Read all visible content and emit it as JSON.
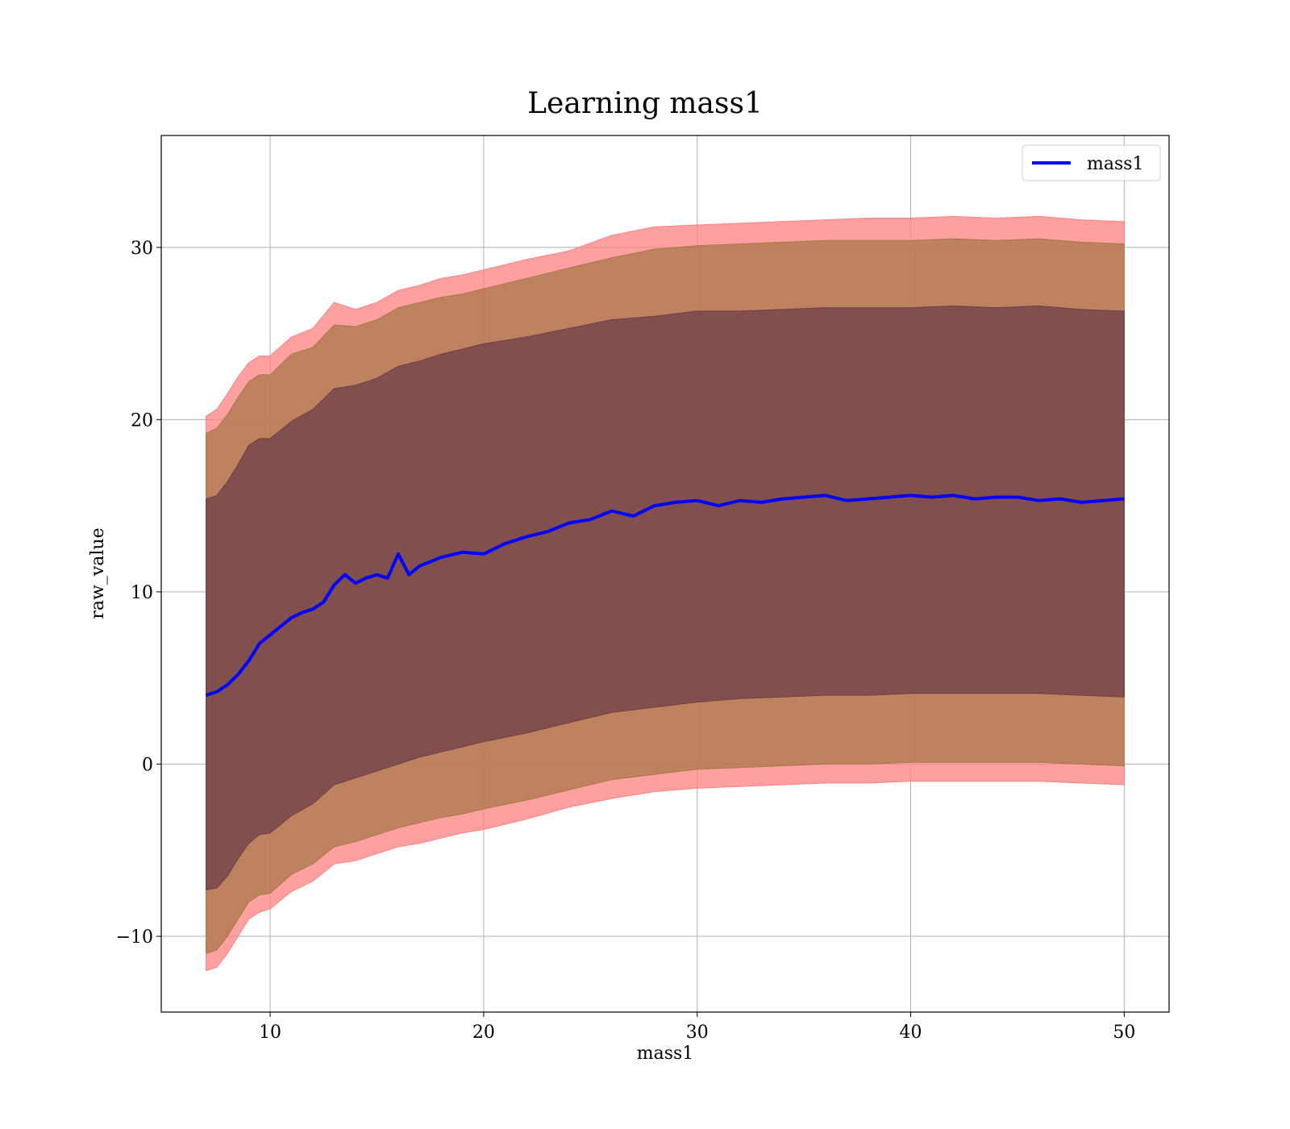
{
  "chart_data": {
    "type": "line",
    "title": "Learning mass1",
    "xlabel": "mass1",
    "ylabel": "raw_value",
    "xlim": [
      4.9,
      52.1
    ],
    "ylim": [
      -14.4,
      36.5
    ],
    "x_ticks": [
      10,
      20,
      30,
      40,
      50
    ],
    "y_ticks": [
      -10,
      0,
      10,
      20,
      30
    ],
    "grid": true,
    "legend_position": "top-right",
    "series": [
      {
        "name": "mass1",
        "color": "#0000ff",
        "x": [
          7,
          7.5,
          8,
          8.5,
          9,
          9.5,
          10,
          10.5,
          11,
          11.5,
          12,
          12.5,
          13,
          13.5,
          14,
          14.5,
          15,
          15.5,
          16,
          16.5,
          17,
          18,
          19,
          20,
          21,
          22,
          23,
          24,
          25,
          26,
          27,
          28,
          29,
          30,
          31,
          32,
          33,
          34,
          35,
          36,
          37,
          38,
          39,
          40,
          41,
          42,
          43,
          44,
          45,
          46,
          47,
          48,
          49,
          50
        ],
        "values": [
          4.0,
          4.2,
          4.6,
          5.2,
          6.0,
          7.0,
          7.5,
          8.0,
          8.5,
          8.8,
          9.0,
          9.4,
          10.4,
          11.0,
          10.5,
          10.8,
          11.0,
          10.8,
          12.2,
          11.0,
          11.5,
          12.0,
          12.3,
          12.2,
          12.8,
          13.2,
          13.5,
          14.0,
          14.2,
          14.7,
          14.4,
          15.0,
          15.2,
          15.3,
          15.0,
          15.3,
          15.2,
          15.4,
          15.5,
          15.6,
          15.3,
          15.4,
          15.5,
          15.6,
          15.5,
          15.6,
          15.4,
          15.5,
          15.5,
          15.3,
          15.4,
          15.2,
          15.3,
          15.4
        ]
      }
    ],
    "bands": [
      {
        "level": "outer",
        "color": "#ff8080",
        "x": [
          7,
          7.5,
          8,
          8.5,
          9,
          9.5,
          10,
          11,
          12,
          13,
          14,
          15,
          16,
          17,
          18,
          19,
          20,
          22,
          24,
          26,
          28,
          30,
          32,
          34,
          36,
          38,
          40,
          42,
          44,
          46,
          48,
          50
        ],
        "upper": [
          20.2,
          20.6,
          21.5,
          22.5,
          23.3,
          23.7,
          23.7,
          24.8,
          25.3,
          26.8,
          26.4,
          26.8,
          27.5,
          27.8,
          28.2,
          28.4,
          28.7,
          29.3,
          29.8,
          30.7,
          31.2,
          31.3,
          31.4,
          31.5,
          31.6,
          31.7,
          31.7,
          31.8,
          31.7,
          31.8,
          31.6,
          31.5
        ],
        "lower": [
          -12.0,
          -11.8,
          -11.0,
          -10.0,
          -9.0,
          -8.6,
          -8.4,
          -7.4,
          -6.8,
          -5.8,
          -5.6,
          -5.2,
          -4.8,
          -4.6,
          -4.3,
          -4.0,
          -3.8,
          -3.2,
          -2.5,
          -2.0,
          -1.6,
          -1.4,
          -1.3,
          -1.2,
          -1.1,
          -1.1,
          -1.0,
          -1.0,
          -1.0,
          -1.0,
          -1.1,
          -1.2
        ]
      },
      {
        "level": "middle",
        "color": "#a87848",
        "x": [
          7,
          7.5,
          8,
          8.5,
          9,
          9.5,
          10,
          11,
          12,
          13,
          14,
          15,
          16,
          17,
          18,
          19,
          20,
          22,
          24,
          26,
          28,
          30,
          32,
          34,
          36,
          38,
          40,
          42,
          44,
          46,
          48,
          50
        ],
        "upper": [
          19.2,
          19.5,
          20.3,
          21.3,
          22.2,
          22.6,
          22.6,
          23.8,
          24.2,
          25.5,
          25.4,
          25.8,
          26.5,
          26.8,
          27.1,
          27.3,
          27.6,
          28.2,
          28.8,
          29.4,
          29.9,
          30.1,
          30.2,
          30.3,
          30.4,
          30.4,
          30.4,
          30.5,
          30.4,
          30.5,
          30.3,
          30.2
        ],
        "lower": [
          -11.0,
          -10.8,
          -10.0,
          -9.0,
          -8.0,
          -7.6,
          -7.5,
          -6.4,
          -5.8,
          -4.8,
          -4.5,
          -4.1,
          -3.7,
          -3.4,
          -3.1,
          -2.9,
          -2.6,
          -2.1,
          -1.5,
          -0.9,
          -0.6,
          -0.3,
          -0.2,
          -0.1,
          0.0,
          0.0,
          0.1,
          0.1,
          0.1,
          0.1,
          0.0,
          -0.1
        ]
      },
      {
        "level": "inner",
        "color": "#6e3d4b",
        "x": [
          7,
          7.5,
          8,
          8.5,
          9,
          9.5,
          10,
          11,
          12,
          13,
          14,
          15,
          16,
          17,
          18,
          19,
          20,
          22,
          24,
          26,
          28,
          30,
          32,
          34,
          36,
          38,
          40,
          42,
          44,
          46,
          48,
          50
        ],
        "upper": [
          15.4,
          15.6,
          16.4,
          17.4,
          18.5,
          18.9,
          18.9,
          19.9,
          20.6,
          21.8,
          22.0,
          22.4,
          23.1,
          23.4,
          23.8,
          24.1,
          24.4,
          24.8,
          25.3,
          25.8,
          26.0,
          26.3,
          26.3,
          26.4,
          26.5,
          26.5,
          26.5,
          26.6,
          26.5,
          26.6,
          26.4,
          26.3
        ],
        "lower": [
          -7.3,
          -7.2,
          -6.5,
          -5.5,
          -4.6,
          -4.1,
          -4.0,
          -3.0,
          -2.3,
          -1.2,
          -0.8,
          -0.4,
          0.0,
          0.4,
          0.7,
          1.0,
          1.3,
          1.8,
          2.4,
          3.0,
          3.3,
          3.6,
          3.8,
          3.9,
          4.0,
          4.0,
          4.1,
          4.1,
          4.1,
          4.1,
          4.0,
          3.9
        ]
      }
    ]
  }
}
